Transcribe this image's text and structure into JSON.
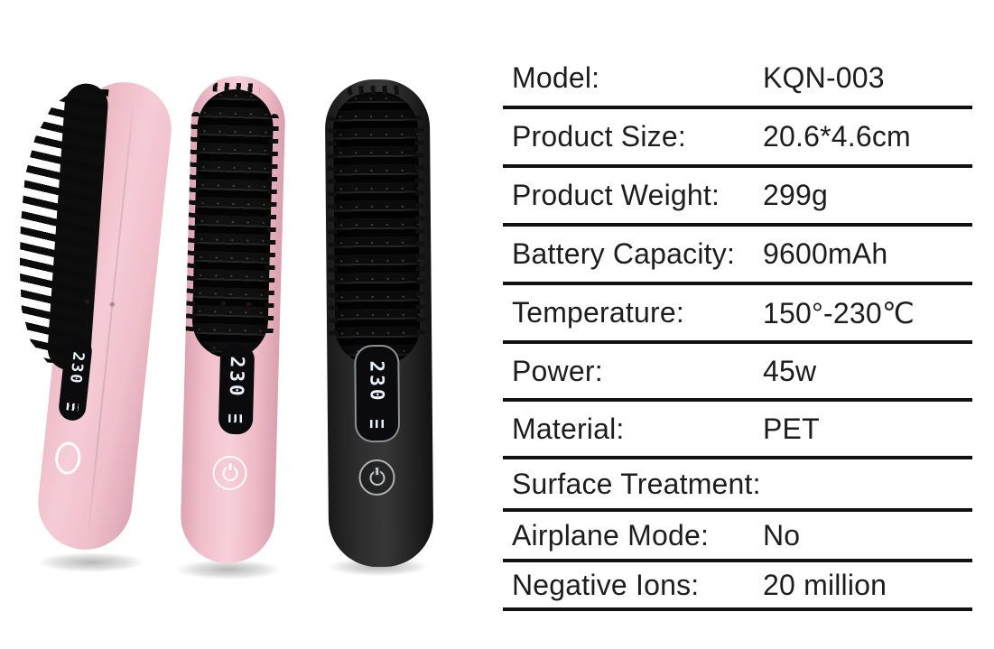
{
  "gallery": {
    "brushes": [
      {
        "variant": "pink-side-view",
        "led_value": "230"
      },
      {
        "variant": "pink-front-view",
        "led_value": "230"
      },
      {
        "variant": "black-front-view",
        "led_value": "230"
      }
    ]
  },
  "spec_table": {
    "rows": [
      {
        "label": "Model:",
        "value": "KQN-003"
      },
      {
        "label": "Product Size:",
        "value": "20.6*4.6cm"
      },
      {
        "label": "Product Weight:",
        "value": "299g"
      },
      {
        "label": "Battery Capacity:",
        "value": "9600mAh"
      },
      {
        "label": "Temperature:",
        "value": "150°-230℃"
      },
      {
        "label": "Power:",
        "value": "45w"
      },
      {
        "label": "Material:",
        "value": "PET"
      },
      {
        "label": "Surface Treatment:",
        "value": ""
      },
      {
        "label": "Airplane Mode:",
        "value": "No"
      },
      {
        "label": "Negative Ions:",
        "value": "20 million"
      }
    ]
  },
  "colors": {
    "pink_body": "#eebcc6",
    "pink_body_light": "#f6d3db",
    "pink_body_dark": "#dca4b2",
    "black_body": "#2b2b2b",
    "bristle": "#0d0d0d",
    "led_background": "#0b0b0d",
    "led_digits": "#e8f1fb",
    "table_line": "#111111",
    "table_text": "#1d1d1d"
  }
}
